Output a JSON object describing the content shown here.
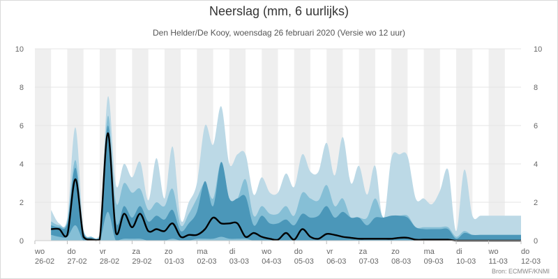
{
  "chart_data": {
    "type": "area",
    "title": "Neerslag (mm, 6 uurlijks)",
    "subtitle": "Den Helder/De Kooy, woensdag 26 februari 2020 (Versie wo 12 uur)",
    "source": "Bron: ECMWF/KNMI",
    "ylim": [
      0,
      10
    ],
    "y_ticks": [
      "0",
      "2",
      "4",
      "6",
      "8",
      "10"
    ],
    "x_day_labels": [
      {
        "day": "wo",
        "date": "26-02"
      },
      {
        "day": "do",
        "date": "27-02"
      },
      {
        "day": "vr",
        "date": "28-02"
      },
      {
        "day": "za",
        "date": "29-02"
      },
      {
        "day": "zo",
        "date": "01-03"
      },
      {
        "day": "ma",
        "date": "02-03"
      },
      {
        "day": "di",
        "date": "03-03"
      },
      {
        "day": "wo",
        "date": "04-03"
      },
      {
        "day": "do",
        "date": "05-03"
      },
      {
        "day": "vr",
        "date": "06-03"
      },
      {
        "day": "za",
        "date": "07-03"
      },
      {
        "day": "zo",
        "date": "08-03"
      },
      {
        "day": "ma",
        "date": "09-03"
      },
      {
        "day": "di",
        "date": "10-03"
      },
      {
        "day": "wo",
        "date": "11-03"
      },
      {
        "day": "do",
        "date": "12-03"
      }
    ],
    "x_unit": "hours after 26-02 00:00",
    "x_range": [
      0,
      360
    ],
    "grid": true,
    "colors": {
      "outer_band": "#bcd9e6",
      "mid_band": "#86bfd6",
      "inner_band": "#4b97b9",
      "median_line": "#000000",
      "shade": "#efefef",
      "gridline": "#e4e4e4"
    },
    "x": [
      12,
      18,
      24,
      30,
      36,
      42,
      48,
      54,
      60,
      66,
      72,
      78,
      84,
      90,
      96,
      102,
      108,
      114,
      120,
      126,
      132,
      138,
      144,
      150,
      156,
      162,
      168,
      174,
      180,
      186,
      192,
      198,
      204,
      210,
      216,
      222,
      228,
      234,
      240,
      246,
      252,
      258,
      264,
      270,
      276,
      282,
      288,
      294,
      300,
      306,
      312,
      318,
      324,
      330,
      336,
      342,
      348,
      354,
      360
    ],
    "series": [
      {
        "role": "outer_upper",
        "values": [
          1.6,
          0.9,
          1.2,
          5.9,
          0.6,
          0.2,
          0.3,
          7.5,
          2.9,
          4.0,
          3.3,
          4.1,
          2.1,
          4.3,
          2.2,
          4.9,
          1.1,
          2.0,
          3.0,
          6.0,
          5.0,
          7.0,
          4.0,
          4.5,
          4.5,
          2.4,
          3.3,
          2.5,
          2.5,
          3.5,
          2.8,
          4.5,
          3.6,
          3.6,
          5.1,
          3.4,
          5.4,
          3.0,
          3.9,
          2.4,
          3.9,
          1.1,
          4.3,
          4.5,
          4.4,
          2.2,
          2.2,
          1.9,
          2.6,
          3.7,
          0.5,
          3.7,
          1.3,
          1.3,
          1.3,
          1.3,
          1.3,
          1.3,
          1.3
        ]
      },
      {
        "role": "mid_upper",
        "values": [
          1.0,
          0.8,
          1.0,
          4.2,
          0.5,
          0.2,
          0.2,
          6.5,
          2.0,
          3.0,
          2.5,
          2.7,
          1.6,
          2.0,
          1.8,
          2.7,
          0.8,
          1.4,
          2.2,
          3.0,
          2.2,
          4.1,
          2.2,
          2.2,
          3.2,
          1.3,
          1.8,
          1.4,
          1.4,
          1.8,
          1.3,
          2.5,
          2.2,
          2.1,
          2.9,
          1.8,
          2.2,
          1.2,
          1.2,
          1.2,
          2.2,
          1.2,
          1.3,
          1.3,
          1.3,
          0.7,
          0.7,
          0.7,
          0.7,
          0.7,
          0.2,
          0.5,
          0.3,
          0.3,
          0.3,
          0.3,
          0.3,
          0.3,
          0.3
        ]
      },
      {
        "role": "inner_upper",
        "values": [
          0.8,
          0.7,
          0.9,
          3.8,
          0.4,
          0.15,
          0.15,
          6.0,
          1.0,
          1.8,
          1.2,
          1.8,
          1.0,
          1.3,
          1.1,
          1.6,
          0.5,
          0.9,
          1.5,
          3.1,
          1.8,
          4.1,
          2.2,
          2.2,
          2.3,
          0.8,
          1.3,
          0.9,
          0.9,
          1.1,
          0.8,
          1.4,
          1.2,
          1.3,
          1.8,
          1.2,
          1.5,
          1.2,
          1.2,
          0.8,
          1.2,
          1.2,
          1.3,
          1.3,
          1.2,
          0.7,
          0.6,
          0.6,
          0.6,
          0.6,
          0.1,
          0.4,
          0.3,
          0.3,
          0.3,
          0.3,
          0.3,
          0.3,
          0.3
        ]
      },
      {
        "role": "inner_lower",
        "values": [
          0.3,
          0.2,
          0.2,
          0.8,
          0.0,
          0.0,
          0.0,
          1.5,
          0.0,
          0.1,
          0.1,
          0.1,
          0.0,
          0.0,
          0.0,
          0.1,
          0.0,
          0.0,
          0.1,
          0.1,
          0.1,
          0.2,
          0.1,
          0.1,
          0.1,
          0.0,
          0.0,
          0.0,
          0.0,
          0.0,
          0.0,
          0.0,
          0.0,
          0.0,
          0.0,
          0.0,
          0.0,
          0.0,
          0.0,
          0.0,
          0.0,
          0.0,
          0.0,
          0.0,
          0.0,
          0.0,
          0.0,
          0.0,
          0.0,
          0.0,
          0.0,
          0.0,
          0.0,
          0.0,
          0.0,
          0.0,
          0.0,
          0.0,
          0.0
        ]
      },
      {
        "role": "median",
        "values": [
          0.6,
          0.6,
          0.3,
          3.2,
          0.2,
          0.05,
          0.05,
          5.6,
          0.4,
          1.4,
          0.7,
          1.4,
          0.5,
          0.6,
          0.5,
          0.9,
          0.2,
          0.3,
          0.3,
          0.6,
          1.2,
          0.9,
          0.9,
          0.9,
          0.2,
          0.4,
          0.2,
          0.1,
          0.05,
          0.4,
          0.05,
          0.6,
          0.2,
          0.1,
          0.35,
          0.3,
          0.2,
          0.15,
          0.1,
          0.1,
          0.1,
          0.1,
          0.1,
          0.15,
          0.15,
          0.05,
          0.05,
          0.05,
          0.05,
          0.05,
          0.0,
          0.0,
          0.0,
          0.0,
          0.0,
          0.0,
          0.0,
          0.0,
          0.0
        ]
      }
    ]
  }
}
